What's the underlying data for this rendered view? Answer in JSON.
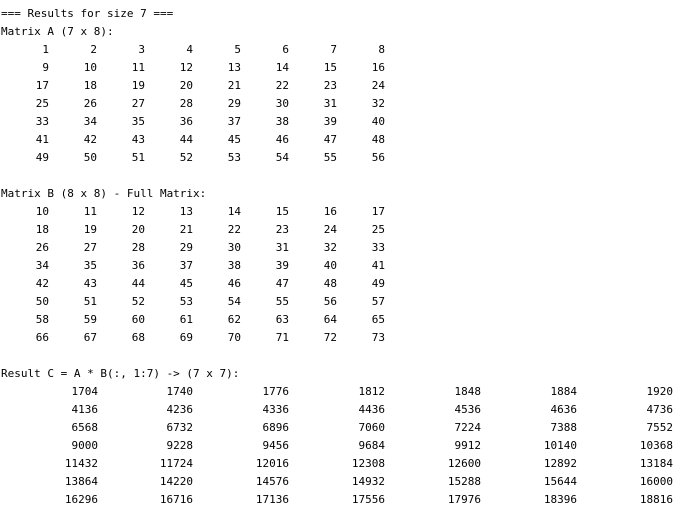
{
  "header": "=== Results for size 7 ===",
  "matrixA": {
    "title": "Matrix A (7 x 8):",
    "rows": [
      [
        "1",
        "2",
        "3",
        "4",
        "5",
        "6",
        "7",
        "8"
      ],
      [
        "9",
        "10",
        "11",
        "12",
        "13",
        "14",
        "15",
        "16"
      ],
      [
        "17",
        "18",
        "19",
        "20",
        "21",
        "22",
        "23",
        "24"
      ],
      [
        "25",
        "26",
        "27",
        "28",
        "29",
        "30",
        "31",
        "32"
      ],
      [
        "33",
        "34",
        "35",
        "36",
        "37",
        "38",
        "39",
        "40"
      ],
      [
        "41",
        "42",
        "43",
        "44",
        "45",
        "46",
        "47",
        "48"
      ],
      [
        "49",
        "50",
        "51",
        "52",
        "53",
        "54",
        "55",
        "56"
      ]
    ]
  },
  "matrixB": {
    "title": "Matrix B (8 x 8) - Full Matrix:",
    "rows": [
      [
        "10",
        "11",
        "12",
        "13",
        "14",
        "15",
        "16",
        "17"
      ],
      [
        "18",
        "19",
        "20",
        "21",
        "22",
        "23",
        "24",
        "25"
      ],
      [
        "26",
        "27",
        "28",
        "29",
        "30",
        "31",
        "32",
        "33"
      ],
      [
        "34",
        "35",
        "36",
        "37",
        "38",
        "39",
        "40",
        "41"
      ],
      [
        "42",
        "43",
        "44",
        "45",
        "46",
        "47",
        "48",
        "49"
      ],
      [
        "50",
        "51",
        "52",
        "53",
        "54",
        "55",
        "56",
        "57"
      ],
      [
        "58",
        "59",
        "60",
        "61",
        "62",
        "63",
        "64",
        "65"
      ],
      [
        "66",
        "67",
        "68",
        "69",
        "70",
        "71",
        "72",
        "73"
      ]
    ]
  },
  "result": {
    "title": "Result C = A * B(:, 1:7) -> (7 x 7):",
    "rows": [
      [
        "1704",
        "1740",
        "1776",
        "1812",
        "1848",
        "1884",
        "1920"
      ],
      [
        "4136",
        "4236",
        "4336",
        "4436",
        "4536",
        "4636",
        "4736"
      ],
      [
        "6568",
        "6732",
        "6896",
        "7060",
        "7224",
        "7388",
        "7552"
      ],
      [
        "9000",
        "9228",
        "9456",
        "9684",
        "9912",
        "10140",
        "10368"
      ],
      [
        "11432",
        "11724",
        "12016",
        "12308",
        "12600",
        "12892",
        "13184"
      ],
      [
        "13864",
        "14220",
        "14576",
        "14932",
        "15288",
        "15644",
        "16000"
      ],
      [
        "16296",
        "16716",
        "17136",
        "17556",
        "17976",
        "18396",
        "18816"
      ]
    ]
  }
}
